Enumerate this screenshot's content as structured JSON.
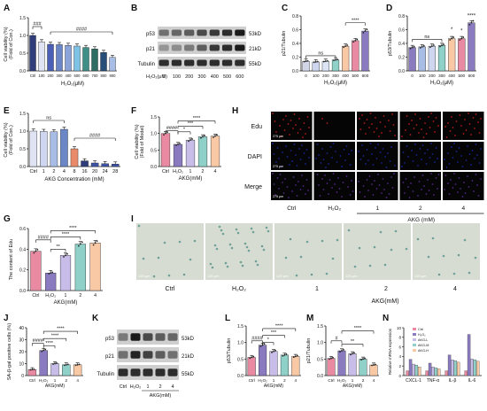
{
  "colors": {
    "navy": "#2f3e7a",
    "blue_dark": "#3d55a8",
    "blue_mid": "#6b86c7",
    "blue_light": "#a8bde6",
    "teal": "#3f8f87",
    "teal_light": "#8fd1c8",
    "green_dark": "#2e6d63",
    "purple": "#8a7ac0",
    "purple_light": "#c7bde8",
    "pink": "#e98aa2",
    "pink_light": "#f4b6c6",
    "orange_light": "#f9c9a6",
    "gray_bar": "#d3d6e8",
    "sig_line": "#000000"
  },
  "panels": {
    "A": "A",
    "B": "B",
    "C": "C",
    "D": "D",
    "E": "E",
    "F": "F",
    "G": "G",
    "H": "H",
    "I": "I",
    "J": "J",
    "K": "K",
    "L": "L",
    "M": "M",
    "N": "N"
  },
  "blots": {
    "B": {
      "rows": [
        "p53",
        "p21",
        "Tubulin"
      ],
      "sizes": [
        "53kD",
        "21kD",
        "55kD"
      ],
      "dose_label": "H₂O₂(μM)",
      "lanes": [
        "0",
        "100",
        "200",
        "300",
        "400",
        "500",
        "600"
      ]
    },
    "K": {
      "rows": [
        "p53",
        "p21",
        "Tubulin"
      ],
      "sizes": [
        "53kD",
        "21kD",
        "55kD"
      ],
      "lanes": [
        "Ctrl",
        "H₂O₂",
        "1",
        "2",
        "4"
      ],
      "group_label": "AKG(mM)"
    }
  },
  "images": {
    "H": {
      "rows": [
        "Edu",
        "DAPI",
        "Merge"
      ],
      "cols": [
        "Ctrl",
        "H₂O₂",
        "1",
        "2",
        "4"
      ],
      "group_label": "AKG (mM)",
      "scale": "275 μm"
    },
    "I": {
      "cols": [
        "Ctrl",
        "H₂O₂",
        "1",
        "2",
        "4"
      ],
      "group_label": "AKG(mM)",
      "scale": "125 μm"
    }
  },
  "chart_data": [
    {
      "id": "A",
      "type": "bar",
      "ylabel": "Cell viability (%)\n(Fold of Con.)",
      "xlabel": "H₂O₂(μM)",
      "categories": [
        "Ctrl",
        "100",
        "200",
        "300",
        "400",
        "500",
        "600",
        "700",
        "800",
        "900"
      ],
      "values": [
        1.0,
        0.82,
        0.75,
        0.74,
        0.72,
        0.7,
        0.66,
        0.62,
        0.52,
        0.38
      ],
      "ylim": [
        0,
        1.5
      ],
      "yticks": [
        0.0,
        0.5,
        1.0,
        1.5
      ],
      "sig": [
        "###",
        "####"
      ]
    },
    {
      "id": "C",
      "type": "bar",
      "ylabel": "p21/Tubulin",
      "xlabel": "H₂O₂(μM)",
      "categories": [
        "0",
        "100",
        "200",
        "300",
        "400",
        "500",
        "600"
      ],
      "values": [
        0.14,
        0.13,
        0.14,
        0.16,
        0.36,
        0.44,
        0.58
      ],
      "ylim": [
        0,
        0.8
      ],
      "yticks": [
        0.0,
        0.2,
        0.4,
        0.6,
        0.8
      ],
      "sig": [
        "ns",
        "****"
      ]
    },
    {
      "id": "D",
      "type": "bar",
      "ylabel": "p53/Tubulin",
      "xlabel": "H₂O₂(μM)",
      "categories": [
        "0",
        "100",
        "200",
        "300",
        "400",
        "500",
        "600"
      ],
      "values": [
        0.34,
        0.35,
        0.36,
        0.37,
        0.47,
        0.47,
        0.7
      ],
      "ylim": [
        0,
        0.8
      ],
      "yticks": [
        0.0,
        0.2,
        0.4,
        0.6,
        0.8
      ],
      "sig": [
        "ns",
        "*",
        "*",
        "****"
      ]
    },
    {
      "id": "E",
      "type": "bar",
      "ylabel": "Cell viability (%)\n(Fold of Con.)",
      "xlabel": "AKG Concentration (mM)",
      "categories": [
        "Ctrl",
        "1",
        "2",
        "4",
        "8",
        "16",
        "20",
        "24",
        "28"
      ],
      "values": [
        1.0,
        0.99,
        0.98,
        1.05,
        0.5,
        0.16,
        0.1,
        0.08,
        0.07
      ],
      "ylim": [
        0,
        1.5
      ],
      "yticks": [
        0.0,
        0.5,
        1.0,
        1.5
      ],
      "sig": [
        "ns",
        "####"
      ]
    },
    {
      "id": "F",
      "type": "bar",
      "ylabel": "Cell viability (%)\n(Fold of Model)",
      "xlabel": "AKG(mM)",
      "categories": [
        "Ctrl",
        "H₂O₂",
        "1",
        "2",
        "4"
      ],
      "values": [
        1.0,
        0.67,
        0.8,
        0.9,
        0.92
      ],
      "ylim": [
        0,
        1.5
      ],
      "yticks": [
        0.0,
        0.5,
        1.0,
        1.5
      ],
      "sig": [
        "####",
        "*",
        "***",
        "****"
      ]
    },
    {
      "id": "G",
      "type": "bar",
      "ylabel": "The content of Edu",
      "xlabel": "AKG(mM)",
      "categories": [
        "Ctrl",
        "H₂O₂",
        "1",
        "2",
        "4"
      ],
      "values": [
        0.38,
        0.17,
        0.34,
        0.45,
        0.46
      ],
      "ylim": [
        0,
        0.6
      ],
      "yticks": [
        0.0,
        0.2,
        0.4,
        0.6
      ],
      "sig": [
        "####",
        "**",
        "****",
        "****"
      ]
    },
    {
      "id": "J",
      "type": "bar",
      "ylabel": "SA-β-gal positive cells (%)",
      "xlabel": "AKG(mM)",
      "categories": [
        "Ctrl",
        "H₂O₂",
        "1",
        "2",
        "4"
      ],
      "values": [
        5,
        21,
        10,
        9,
        9
      ],
      "ylim": [
        0,
        40
      ],
      "yticks": [
        0,
        10,
        20,
        30,
        40
      ],
      "sig": [
        "####",
        "****",
        "****",
        "****"
      ]
    },
    {
      "id": "L",
      "type": "bar",
      "ylabel": "p53/Tubulin",
      "xlabel": "AKG(mM)",
      "categories": [
        "Ctrl",
        "H₂O₂",
        "1",
        "2",
        "4"
      ],
      "values": [
        0.55,
        0.92,
        0.73,
        0.62,
        0.58
      ],
      "ylim": [
        0,
        1.5
      ],
      "yticks": [
        0.0,
        0.5,
        1.0,
        1.5
      ],
      "sig": [
        "####",
        "*",
        "***",
        "****"
      ]
    },
    {
      "id": "M",
      "type": "bar",
      "ylabel": "p21/Tubulin",
      "xlabel": "AKG(mM)",
      "categories": [
        "Ctrl",
        "H₂O₂",
        "1",
        "2",
        "4"
      ],
      "values": [
        0.52,
        0.75,
        0.66,
        0.5,
        0.32
      ],
      "ylim": [
        0,
        1.5
      ],
      "yticks": [
        0.0,
        0.5,
        1.0,
        1.5
      ],
      "sig": [
        "#",
        "**",
        "****"
      ]
    },
    {
      "id": "N",
      "type": "bar",
      "ylabel": "Relative mRNA expression",
      "categories": [
        "CXCL-1",
        "TNF-α",
        "IL-β",
        "IL-6"
      ],
      "series": [
        {
          "name": "Ctrl",
          "values": [
            1.0,
            1.0,
            1.0,
            1.0
          ]
        },
        {
          "name": "H₂O₂",
          "values": [
            3.4,
            2.6,
            4.3,
            8.6
          ]
        },
        {
          "name": "AKG-L",
          "values": [
            2.4,
            1.8,
            3.3,
            3.5
          ]
        },
        {
          "name": "AKG-M",
          "values": [
            2.2,
            1.6,
            3.1,
            3.3
          ]
        },
        {
          "name": "AKG-H",
          "values": [
            1.8,
            1.4,
            2.8,
            3.0
          ]
        }
      ],
      "ylim": [
        0,
        10
      ],
      "yticks": [
        0,
        2,
        4,
        6,
        8,
        10
      ]
    }
  ]
}
